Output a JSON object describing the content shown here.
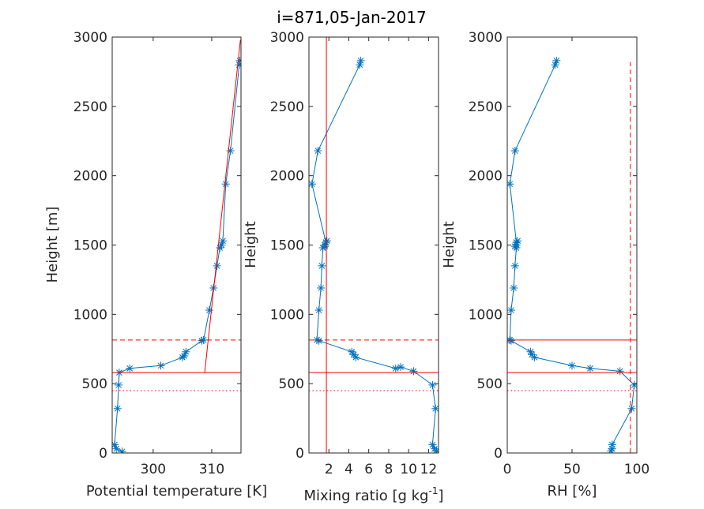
{
  "figure": {
    "title": "i=871,05-Jan-2017"
  },
  "colors": {
    "profile": "#0072bd",
    "reference": "#ff0000",
    "axis": "#262626"
  },
  "chart_data": [
    {
      "type": "line",
      "title": "i=871,05-Jan-2017",
      "xlabel": "Potential temperature [K]",
      "ylabel": "Height [m]",
      "xlim": [
        293,
        315
      ],
      "ylim": [
        0,
        3000
      ],
      "xticks": [
        300,
        310
      ],
      "xtick_labels": [
        "300",
        "310"
      ],
      "yticks": [
        0,
        500,
        1000,
        1500,
        2000,
        2500,
        3000
      ],
      "ytick_labels": [
        "0",
        "500",
        "1000",
        "1500",
        "2000",
        "2500",
        "3000"
      ],
      "series": [
        {
          "marker": "asterisk",
          "x": [
            294.7,
            293.7,
            293.4,
            293.9,
            294.1,
            294.2,
            296.0,
            301.3,
            305.0,
            305.3,
            305.6,
            308.3,
            308.6,
            309.6,
            310.3,
            310.9,
            311.4,
            311.7,
            311.9,
            312.4,
            313.2,
            314.7,
            314.8
          ],
          "y": [
            10,
            30,
            60,
            320,
            490,
            580,
            610,
            630,
            690,
            700,
            730,
            810,
            815,
            1030,
            1190,
            1350,
            1480,
            1500,
            1530,
            1940,
            2180,
            2800,
            2830
          ]
        },
        {
          "style": "solid",
          "x": [
            308.8,
            314.9
          ],
          "y": [
            580,
            2980
          ]
        },
        {
          "style": "solid",
          "x": [
            293,
            315
          ],
          "y": [
            580,
            580
          ]
        },
        {
          "style": "dashed",
          "x": [
            293,
            315
          ],
          "y": [
            815,
            815
          ]
        },
        {
          "style": "dotted",
          "x": [
            293,
            315
          ],
          "y": [
            450,
            450
          ]
        }
      ]
    },
    {
      "type": "line",
      "xlabel": "Mixing ratio [g kg",
      "xlabel_sup": "-1",
      "xlabel_end": "]",
      "ylabel": "Height",
      "xlim": [
        0,
        13
      ],
      "ylim": [
        0,
        3000
      ],
      "xticks": [
        2,
        4,
        6,
        8,
        10,
        12
      ],
      "xtick_labels": [
        "2",
        "4",
        "6",
        "8",
        "10",
        "12"
      ],
      "yticks": [
        0,
        500,
        1000,
        1500,
        2000,
        2500,
        3000
      ],
      "ytick_labels": [
        "0",
        "500",
        "1000",
        "1500",
        "2000",
        "2500",
        "3000"
      ],
      "series": [
        {
          "marker": "asterisk",
          "x": [
            12.8,
            12.6,
            12.4,
            12.7,
            12.4,
            10.5,
            9.2,
            8.7,
            4.7,
            4.5,
            4.3,
            1.0,
            0.8,
            1.0,
            1.2,
            1.3,
            1.4,
            1.6,
            1.8,
            1.6,
            1.7,
            0.3,
            0.9,
            5.1,
            5.2
          ],
          "y": [
            15,
            30,
            60,
            320,
            490,
            590,
            620,
            610,
            690,
            710,
            730,
            810,
            815,
            1030,
            1190,
            1350,
            1480,
            1500,
            1530,
            1490,
            1520,
            1940,
            2180,
            2800,
            2830
          ]
        },
        {
          "style": "solid",
          "x": [
            1.75,
            1.75
          ],
          "y": [
            0,
            3000
          ]
        },
        {
          "style": "solid",
          "x": [
            0,
            13
          ],
          "y": [
            580,
            580
          ]
        },
        {
          "style": "dashed",
          "x": [
            0,
            13
          ],
          "y": [
            815,
            815
          ]
        },
        {
          "style": "dotted",
          "x": [
            0,
            13
          ],
          "y": [
            450,
            450
          ]
        }
      ]
    },
    {
      "type": "line",
      "xlabel": "RH [%]",
      "ylabel": "Height",
      "xlim": [
        0,
        100
      ],
      "ylim": [
        0,
        3000
      ],
      "xticks": [
        0,
        50,
        100
      ],
      "xtick_labels": [
        "0",
        "50",
        "100"
      ],
      "yticks": [
        0,
        500,
        1000,
        1500,
        2000,
        2500,
        3000
      ],
      "ytick_labels": [
        "0",
        "500",
        "1000",
        "1500",
        "2000",
        "2500",
        "3000"
      ],
      "series": [
        {
          "marker": "asterisk",
          "x": [
            80,
            81,
            81,
            96,
            98,
            87,
            64,
            50,
            21,
            19,
            18,
            3,
            2,
            3,
            5,
            6,
            7,
            7,
            8,
            6,
            7,
            2,
            6,
            37,
            38
          ],
          "y": [
            15,
            30,
            60,
            320,
            490,
            590,
            610,
            630,
            690,
            710,
            730,
            810,
            815,
            1030,
            1190,
            1350,
            1480,
            1500,
            1530,
            1490,
            1520,
            1940,
            2180,
            2800,
            2830
          ]
        },
        {
          "style": "dashed",
          "x": [
            95,
            95
          ],
          "y": [
            0,
            2820
          ]
        },
        {
          "style": "solid",
          "x": [
            0,
            100
          ],
          "y": [
            580,
            580
          ]
        },
        {
          "style": "solid",
          "x": [
            0,
            100
          ],
          "y": [
            815,
            815
          ]
        },
        {
          "style": "dotted",
          "x": [
            0,
            100
          ],
          "y": [
            450,
            450
          ]
        }
      ]
    }
  ]
}
